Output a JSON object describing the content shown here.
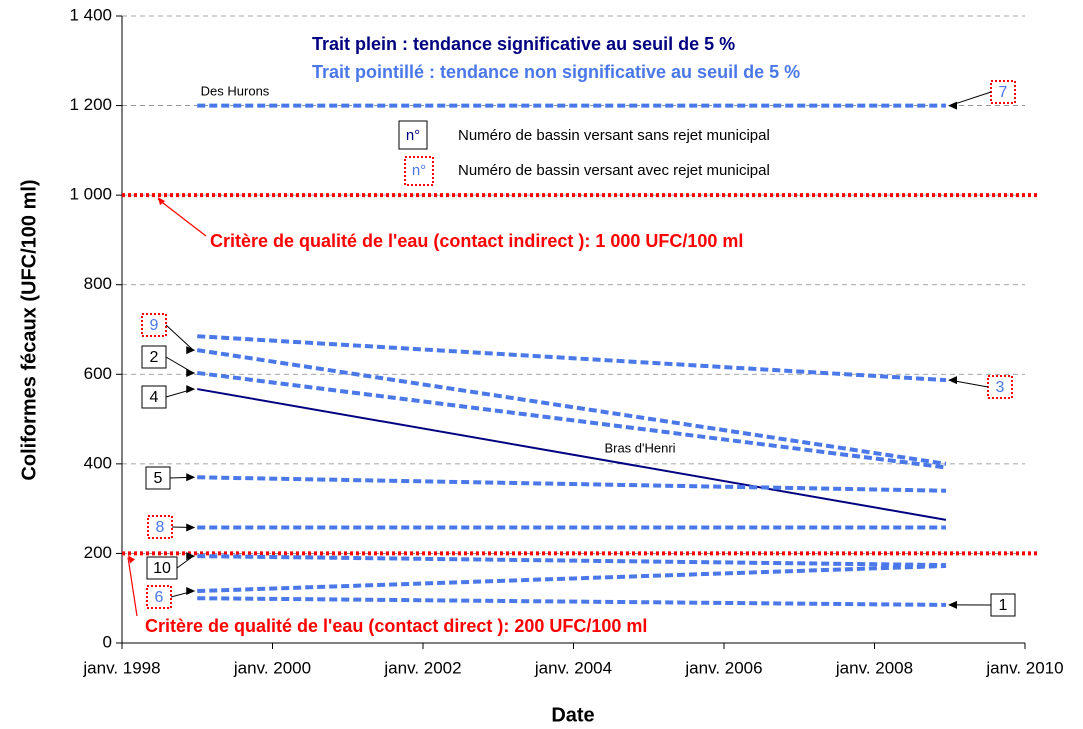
{
  "chart_data": {
    "type": "line",
    "y_label": "Coliformes fécaux (UFC/100 ml)",
    "x_label": "Date",
    "xlim": [
      1998,
      2010
    ],
    "xticks": [
      {
        "value": 1998,
        "label": "janv. 1998"
      },
      {
        "value": 2000,
        "label": "janv. 2000"
      },
      {
        "value": 2002,
        "label": "janv. 2002"
      },
      {
        "value": 2004,
        "label": "janv. 2004"
      },
      {
        "value": 2006,
        "label": "janv. 2006"
      },
      {
        "value": 2008,
        "label": "janv. 2008"
      },
      {
        "value": 2010,
        "label": "janv. 2010"
      }
    ],
    "ylim": [
      0,
      1400
    ],
    "yticks": [
      0,
      {
        "value": 200,
        "label": "200"
      },
      {
        "value": 400,
        "label": "400"
      },
      {
        "value": 600,
        "label": "600"
      },
      {
        "value": 800,
        "label": "800"
      },
      {
        "value": 1000,
        "label": "1 000"
      },
      {
        "value": 1200,
        "label": "1 200"
      },
      {
        "value": 1400,
        "label": "1 400"
      }
    ],
    "grid": true,
    "legend": {
      "solid": "Trait plein :  tendance significative au seuil de 5 %",
      "dotted": "Trait pointillé :  tendance non significative au seuil de 5 %",
      "box_symbol": "n°",
      "box_plain": "Numéro de bassin versant sans rejet municipal",
      "box_municipal": "Numéro de bassin versant avec rejet municipal",
      "color_solid": "#000080",
      "color_dotted": "#4a78e8"
    },
    "series": [
      {
        "name": "7",
        "municipal": true,
        "style": "dotted",
        "color": "#4a78e8",
        "x": [
          1999,
          2008.95
        ],
        "values": [
          1200,
          1200
        ],
        "annotation": "Des Hurons"
      },
      {
        "name": "3",
        "municipal": true,
        "style": "dotted",
        "color": "#4a78e8",
        "x": [
          1999,
          2008.95
        ],
        "values": [
          685,
          587
        ]
      },
      {
        "name": "9",
        "municipal": true,
        "style": "dotted",
        "color": "#4a78e8",
        "x": [
          1999,
          2008.95
        ],
        "values": [
          654,
          400
        ]
      },
      {
        "name": "2",
        "municipal": false,
        "style": "dotted",
        "color": "#4a78e8",
        "x": [
          1999,
          2008.95
        ],
        "values": [
          603,
          392
        ]
      },
      {
        "name": "4",
        "municipal": false,
        "style": "solid",
        "color": "#000080",
        "x": [
          1999,
          2008.95
        ],
        "values": [
          567,
          275
        ],
        "annotation": "Bras d'Henri"
      },
      {
        "name": "5",
        "municipal": false,
        "style": "dotted",
        "color": "#4a78e8",
        "x": [
          1999,
          2008.95
        ],
        "values": [
          370,
          340
        ]
      },
      {
        "name": "8",
        "municipal": true,
        "style": "dotted",
        "color": "#4a78e8",
        "x": [
          1999,
          2008.95
        ],
        "values": [
          258,
          258
        ]
      },
      {
        "name": "10",
        "municipal": false,
        "style": "dotted",
        "color": "#4a78e8",
        "x": [
          1999,
          2008.95
        ],
        "values": [
          194,
          174
        ]
      },
      {
        "name": "6",
        "municipal": true,
        "style": "dotted",
        "color": "#4a78e8",
        "x": [
          1999,
          2008.95
        ],
        "values": [
          116,
          172
        ]
      },
      {
        "name": "1",
        "municipal": false,
        "style": "dotted",
        "color": "#4a78e8",
        "x": [
          1999,
          2008.95
        ],
        "values": [
          100,
          85
        ]
      }
    ],
    "reference_lines": [
      {
        "value": 1000,
        "color": "#ff0000",
        "label": "Critère de qualité de l'eau (contact indirect ): 1 000 UFC/100 ml"
      },
      {
        "value": 200,
        "color": "#ff0000",
        "label": "Critère de qualité de l'eau (contact direct ): 200 UFC/100 ml"
      }
    ]
  }
}
